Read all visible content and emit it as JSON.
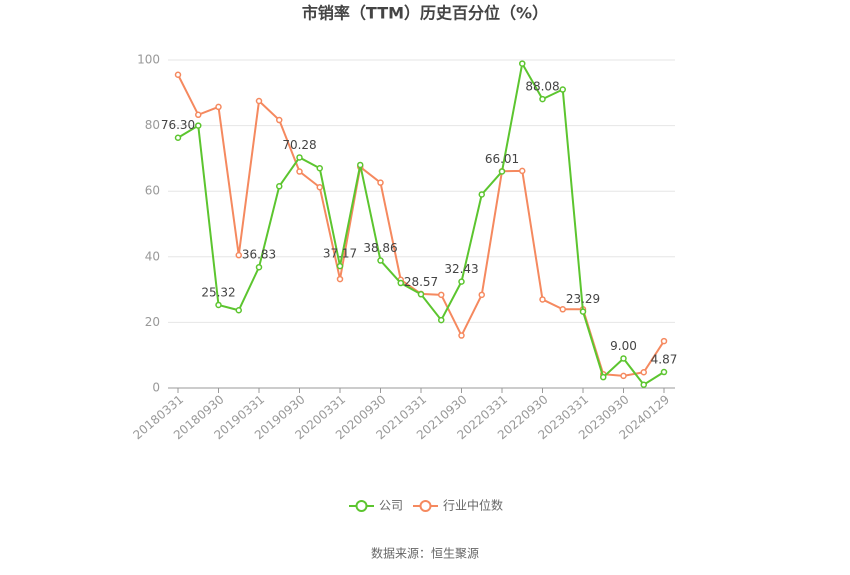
{
  "chart_data": {
    "type": "line",
    "title": "市销率（TTM）历史百分位（%）",
    "source": "数据来源：恒生聚源",
    "categories": [
      "20180331",
      null,
      "20180930",
      null,
      "20190331",
      null,
      "20190930",
      null,
      "20200331",
      null,
      "20200930",
      null,
      "20210331",
      null,
      "20210930",
      null,
      "20220331",
      null,
      "20220930",
      null,
      "20230331",
      null,
      "20230930",
      null,
      "20240129"
    ],
    "series": [
      {
        "name": "公司",
        "color": "#5cc52f",
        "values": [
          76.3,
          80,
          25.32,
          23.7,
          36.83,
          61.5,
          70.28,
          67,
          37.17,
          68,
          38.86,
          32,
          28.57,
          20.7,
          32.43,
          59,
          66.01,
          98.9,
          88.08,
          91,
          23.29,
          3.3,
          9.0,
          1.0,
          4.87
        ],
        "value_labels": [
          "76.30",
          null,
          "25.32",
          null,
          "36.83",
          null,
          "70.28",
          null,
          "37.17",
          null,
          "38.86",
          null,
          "28.57",
          null,
          "32.43",
          null,
          "66.01",
          null,
          "88.08",
          null,
          "23.29",
          null,
          "9.00",
          null,
          "4.87"
        ]
      },
      {
        "name": "行业中位数",
        "color": "#f5895f",
        "values": [
          95.5,
          83.3,
          85.7,
          40.5,
          87.5,
          81.7,
          66,
          61.2,
          33.2,
          67.4,
          62.6,
          33,
          28.7,
          28.4,
          16,
          28.4,
          66.1,
          66.2,
          27,
          24,
          24,
          4.2,
          3.7,
          4.8,
          14.3
        ]
      }
    ],
    "ylim": [
      0,
      100
    ],
    "yticks": [
      0,
      20,
      40,
      60,
      80,
      100
    ],
    "grid": true
  }
}
